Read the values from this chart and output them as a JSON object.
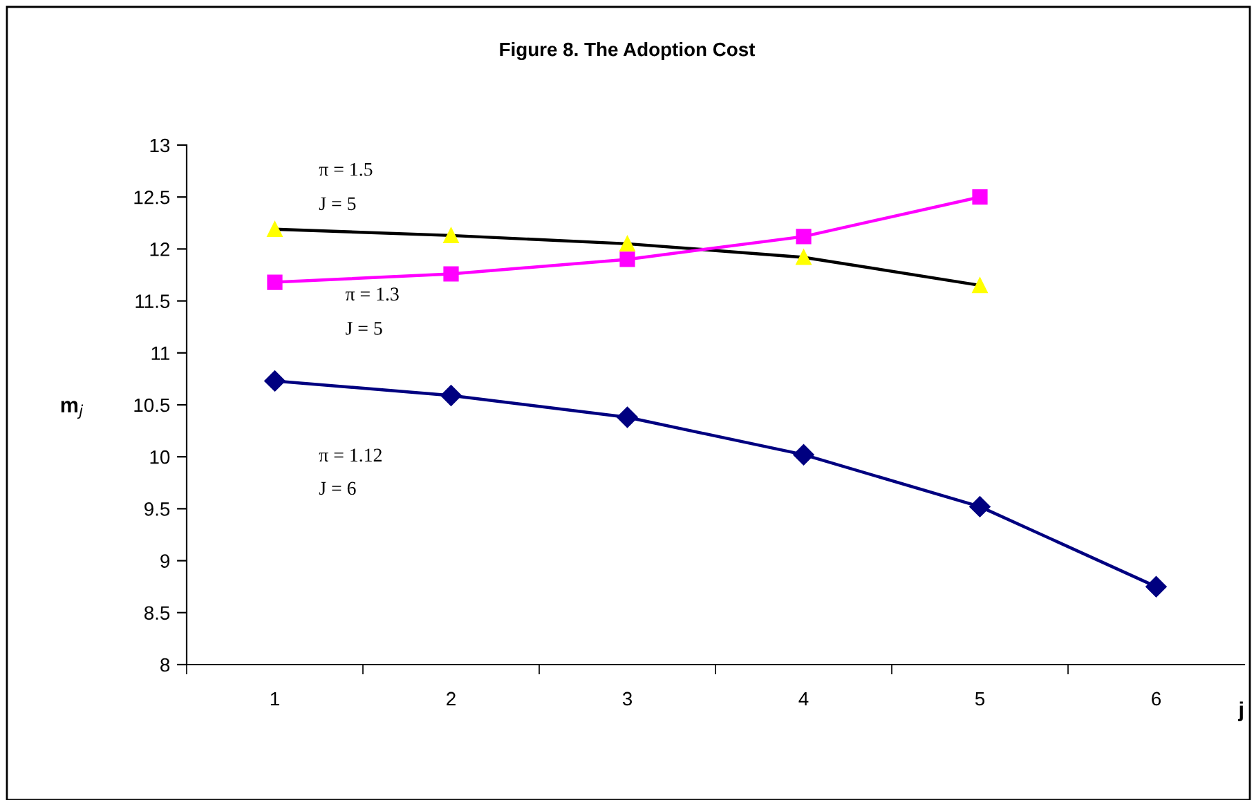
{
  "chart_data": {
    "type": "line",
    "title": "Figure 8. The Adoption Cost",
    "xlabel": "j",
    "ylabel": "m$_{j}$",
    "categories": [
      "1",
      "2",
      "3",
      "4",
      "5",
      "6"
    ],
    "series": [
      {
        "color": "#000000",
        "colors": [
          "#ffff00",
          "#ffff00",
          "#ffff00",
          "#ffff00",
          "#ffff00",
          null
        ],
        "marker": "triangle",
        "values": [
          12.19,
          12.13,
          12.05,
          11.92,
          11.65,
          null
        ]
      },
      {
        "color": "#ff00ff",
        "marker": "square",
        "values": [
          11.68,
          11.76,
          11.9,
          12.12,
          12.5,
          null
        ]
      },
      {
        "color": "#000080",
        "marker": "diamond",
        "values": [
          10.73,
          10.59,
          10.38,
          10.02,
          9.52,
          8.75
        ]
      }
    ],
    "ylim": [
      8,
      13
    ],
    "yticks": [
      8,
      8.5,
      9,
      9.5,
      10,
      10.5,
      11,
      11.5,
      12,
      12.5,
      13
    ],
    "annotations": [
      "π = 1.5",
      "J = 5",
      "π = 1.3",
      "J = 5",
      "π = 1.12",
      "J = 6"
    ],
    "grid": false,
    "legend": false,
    "line_style": "solid"
  }
}
